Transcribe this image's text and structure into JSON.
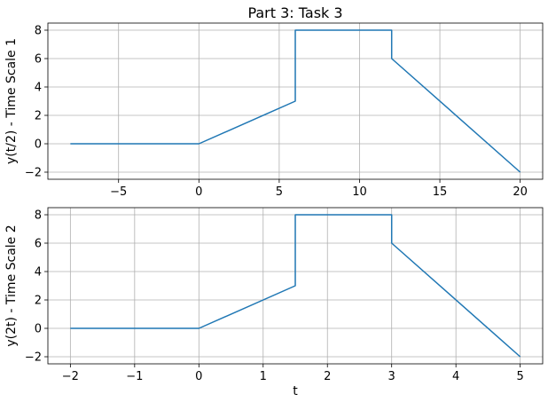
{
  "chart_data": [
    {
      "type": "line",
      "title": "Part 3: Task 3",
      "xlabel": "",
      "ylabel": "y(t/2) - Time Scale 1",
      "xlim": [
        -9.4,
        21.4
      ],
      "ylim": [
        -2.5,
        8.5
      ],
      "xticks": [
        -5,
        0,
        5,
        10,
        15,
        20
      ],
      "xtick_labels": [
        "−5",
        "0",
        "5",
        "10",
        "15",
        "20"
      ],
      "yticks": [
        -2,
        0,
        2,
        4,
        6,
        8
      ],
      "ytick_labels": [
        "−2",
        "0",
        "2",
        "4",
        "6",
        "8"
      ],
      "grid": true,
      "line_color": "#1f77b4",
      "x": [
        -8,
        0,
        6,
        6,
        12,
        12,
        20
      ],
      "y": [
        0,
        0,
        3,
        8,
        8,
        6,
        -2
      ]
    },
    {
      "type": "line",
      "title": "",
      "xlabel": "t",
      "ylabel": "y(2t) - Time Scale 2",
      "xlim": [
        -2.35,
        5.35
      ],
      "ylim": [
        -2.5,
        8.5
      ],
      "xticks": [
        -2,
        -1,
        0,
        1,
        2,
        3,
        4,
        5
      ],
      "xtick_labels": [
        "−2",
        "−1",
        "0",
        "1",
        "2",
        "3",
        "4",
        "5"
      ],
      "yticks": [
        -2,
        0,
        2,
        4,
        6,
        8
      ],
      "ytick_labels": [
        "−2",
        "0",
        "2",
        "4",
        "6",
        "8"
      ],
      "grid": true,
      "line_color": "#1f77b4",
      "x": [
        -2,
        0,
        1.5,
        1.5,
        3,
        3,
        5
      ],
      "y": [
        0,
        0,
        3,
        8,
        8,
        6,
        -2
      ]
    }
  ]
}
